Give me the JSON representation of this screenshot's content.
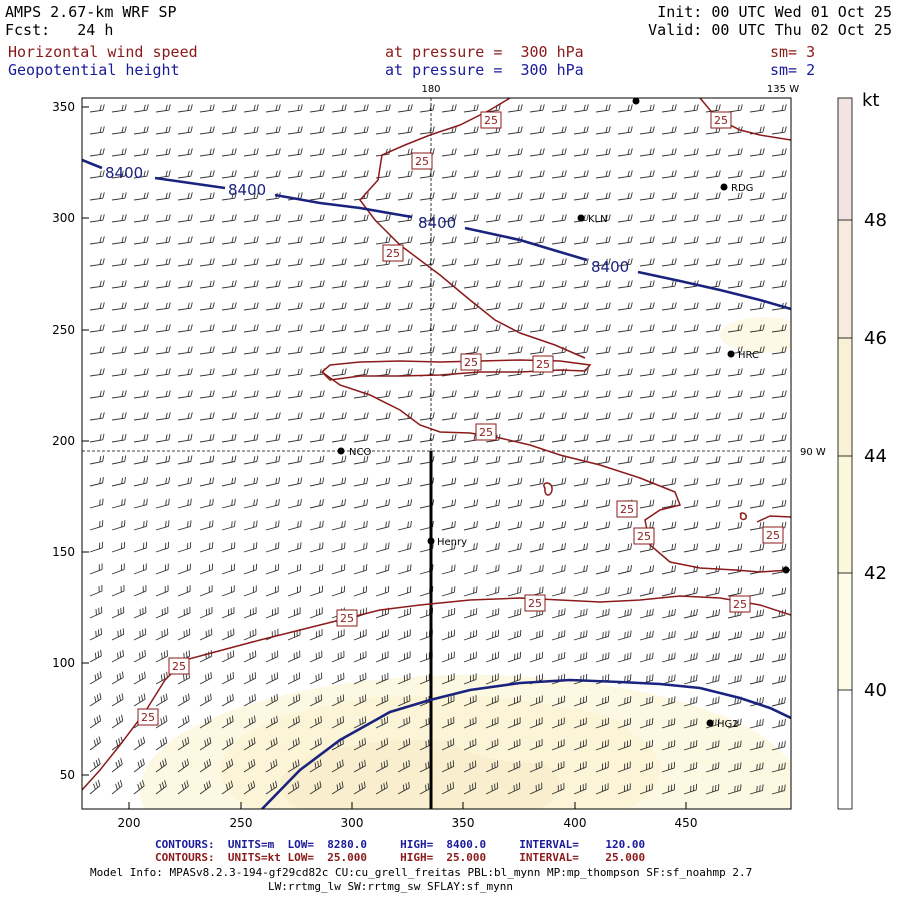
{
  "header": {
    "model": "AMPS 2.67-km WRF SP",
    "init": "Init: 00 UTC Wed 01 Oct 25",
    "forecast": "Fcst:   24 h",
    "valid": "Valid: 00 UTC Thu 02 Oct 25",
    "field1": "Horizontal wind speed",
    "field1_level": "at pressure =  300 hPa",
    "field1_sm": "sm= 3",
    "field2": "Geopotential height",
    "field2_level": "at pressure =  300 hPa",
    "field2_sm": "sm= 2"
  },
  "axes": {
    "x_ticks": [
      "200",
      "250",
      "300",
      "350",
      "400",
      "450"
    ],
    "y_ticks": [
      "50",
      "100",
      "150",
      "200",
      "250",
      "300",
      "350"
    ],
    "lon_180": "180",
    "lon_135w": "135 W",
    "lon_90w": "90 W"
  },
  "stations": [
    {
      "label": "RDG"
    },
    {
      "label": "KLN"
    },
    {
      "label": "HRC"
    },
    {
      "label": "NCO"
    },
    {
      "label": "Henry"
    },
    {
      "label": "HG2"
    }
  ],
  "contours": {
    "height_label": "8400",
    "speed_label": "25"
  },
  "colorbar": {
    "unit": "kt",
    "ticks": [
      "48",
      "46",
      "44",
      "42",
      "40"
    ],
    "colors": [
      "#f3e4e4",
      "#f6ebdc",
      "#f8f1d6",
      "#fbf7da",
      "#fdfce8",
      "#ffffff"
    ]
  },
  "footer": {
    "line1_title": "CONTOURS:",
    "line1_units": "UNITS=m",
    "line1_low": "LOW=  8280.0",
    "line1_high": "HIGH=  8400.0",
    "line1_interval": "INTERVAL=    120.00",
    "line2_title": "CONTOURS:",
    "line2_units": "UNITS=kt",
    "line2_low": "LOW=  25.000",
    "line2_high": "HIGH=  25.000",
    "line2_interval": "INTERVAL=    25.000",
    "model_info": "Model Info: MPASv8.2.3-194-gf29cd82c CU:cu_grell_freitas PBL:bl_mynn MP:mp_thompson SF:sf_noahmp 2.7",
    "model_info2": "LW:rrtmg_lw SW:rrtmg_sw SFLAY:sf_mynn"
  },
  "colors": {
    "height_contour": "#1a237e",
    "speed_contour": "#8b1a1a",
    "text_red": "#8b1a1a",
    "text_blue": "#1a1a9a"
  }
}
